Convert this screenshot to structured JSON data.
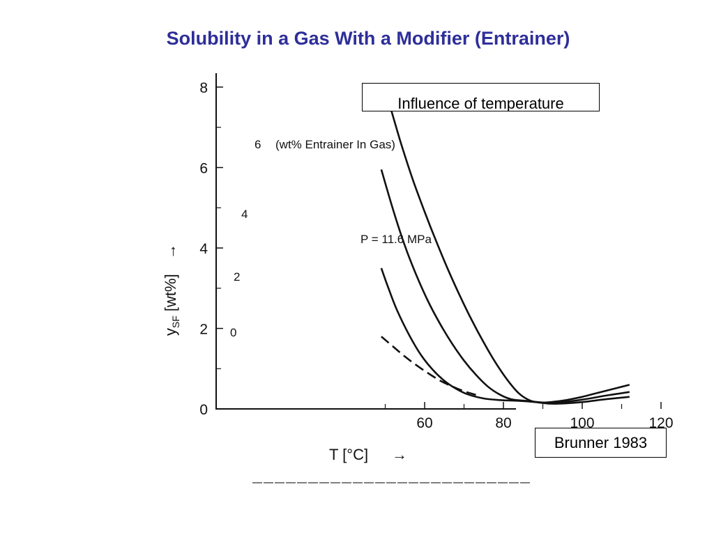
{
  "slide": {
    "title": "Solubility in a Gas With a Modifier (Entrainer)",
    "caption": "Influence of temperature",
    "source": "Brunner 1983"
  },
  "chart_data": {
    "type": "line",
    "xlabel": "T [°C]",
    "xlabel_arrow": "→",
    "ylabel_main": "y",
    "ylabel_sub": "SF",
    "ylabel_unit": "[wt%]",
    "ylabel_arrow": "→",
    "xlim": [
      47,
      122
    ],
    "ylim": [
      0,
      8.4
    ],
    "xticks": [
      60,
      80,
      100,
      120
    ],
    "yticks": [
      0,
      2,
      4,
      6,
      8
    ],
    "x_minor_ticks": [
      50,
      70,
      90,
      110
    ],
    "y_minor_ticks": [
      1,
      3,
      5,
      7
    ],
    "grid": false,
    "pressure_label": "P = 11.6 MPa",
    "legend_note": "(wt% Entrainer In Gas)",
    "series": [
      {
        "name": "6",
        "style": "solid",
        "points": [
          [
            51,
            7.6
          ],
          [
            54,
            6.6
          ],
          [
            57,
            5.7
          ],
          [
            60,
            4.9
          ],
          [
            63,
            4.15
          ],
          [
            66,
            3.45
          ],
          [
            69,
            2.8
          ],
          [
            72,
            2.2
          ],
          [
            75,
            1.65
          ],
          [
            78,
            1.15
          ],
          [
            81,
            0.72
          ],
          [
            84,
            0.38
          ],
          [
            87,
            0.2
          ],
          [
            90,
            0.16
          ],
          [
            93,
            0.18
          ],
          [
            96,
            0.22
          ],
          [
            100,
            0.3
          ],
          [
            104,
            0.4
          ],
          [
            108,
            0.5
          ],
          [
            112,
            0.6
          ]
        ]
      },
      {
        "name": "4",
        "style": "solid",
        "points": [
          [
            49,
            5.95
          ],
          [
            52,
            4.95
          ],
          [
            55,
            4.05
          ],
          [
            58,
            3.3
          ],
          [
            61,
            2.65
          ],
          [
            64,
            2.1
          ],
          [
            67,
            1.62
          ],
          [
            70,
            1.2
          ],
          [
            73,
            0.85
          ],
          [
            76,
            0.56
          ],
          [
            79,
            0.36
          ],
          [
            82,
            0.24
          ],
          [
            86,
            0.2
          ],
          [
            90,
            0.16
          ],
          [
            95,
            0.17
          ],
          [
            100,
            0.23
          ],
          [
            106,
            0.33
          ],
          [
            112,
            0.42
          ]
        ]
      },
      {
        "name": "2",
        "style": "solid",
        "points": [
          [
            49,
            3.5
          ],
          [
            51,
            2.95
          ],
          [
            53,
            2.45
          ],
          [
            56,
            1.85
          ],
          [
            59,
            1.35
          ],
          [
            62,
            0.98
          ],
          [
            65,
            0.7
          ],
          [
            68,
            0.5
          ],
          [
            71,
            0.36
          ],
          [
            75,
            0.26
          ],
          [
            79,
            0.22
          ],
          [
            84,
            0.2
          ],
          [
            88,
            0.17
          ],
          [
            92,
            0.13
          ],
          [
            96,
            0.14
          ],
          [
            100,
            0.17
          ],
          [
            106,
            0.24
          ],
          [
            112,
            0.3
          ]
        ]
      },
      {
        "name": "0",
        "style": "dashed",
        "points": [
          [
            49,
            1.8
          ],
          [
            52,
            1.55
          ],
          [
            55,
            1.3
          ],
          [
            58,
            1.08
          ],
          [
            61,
            0.88
          ],
          [
            64,
            0.7
          ],
          [
            67,
            0.56
          ],
          [
            70,
            0.44
          ],
          [
            73,
            0.35
          ]
        ]
      }
    ]
  }
}
